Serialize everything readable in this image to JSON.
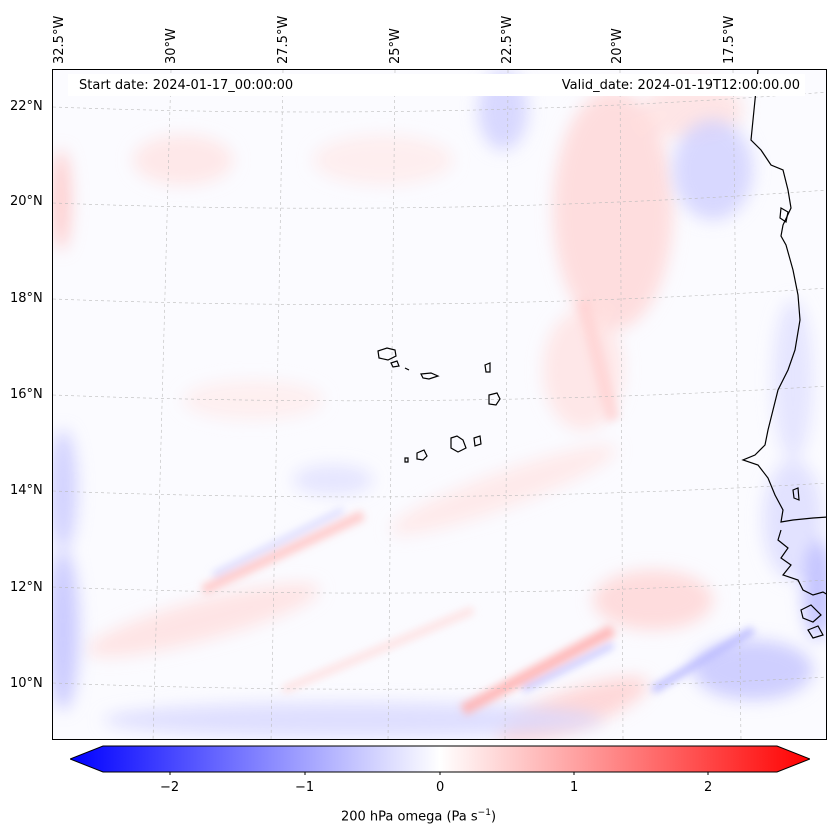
{
  "header": {
    "start_date": "Start date: 2024-01-17_00:00:00",
    "valid_date": "Valid_date: 2024-01-19T12:00:00.00"
  },
  "map": {
    "longitude_labels": [
      "32.5°W",
      "30°W",
      "27.5°W",
      "25°W",
      "22.5°W",
      "20°W",
      "17.5°W"
    ],
    "latitude_labels": [
      "22°N",
      "20°N",
      "18°N",
      "16°N",
      "14°N",
      "12°N",
      "10°N"
    ],
    "field": "200 hPa omega",
    "region": "Cape Verde / West African coast"
  },
  "colorbar": {
    "ticks": [
      "−2",
      "−1",
      "0",
      "1",
      "2"
    ],
    "label": "200 hPa omega (Pa s",
    "label_exp": "−1",
    "label_end": ")",
    "min_value": -2.6,
    "max_value": 2.6,
    "colors": {
      "negative": "#0000ff",
      "zero": "#ffffff",
      "positive": "#ff0000"
    }
  }
}
